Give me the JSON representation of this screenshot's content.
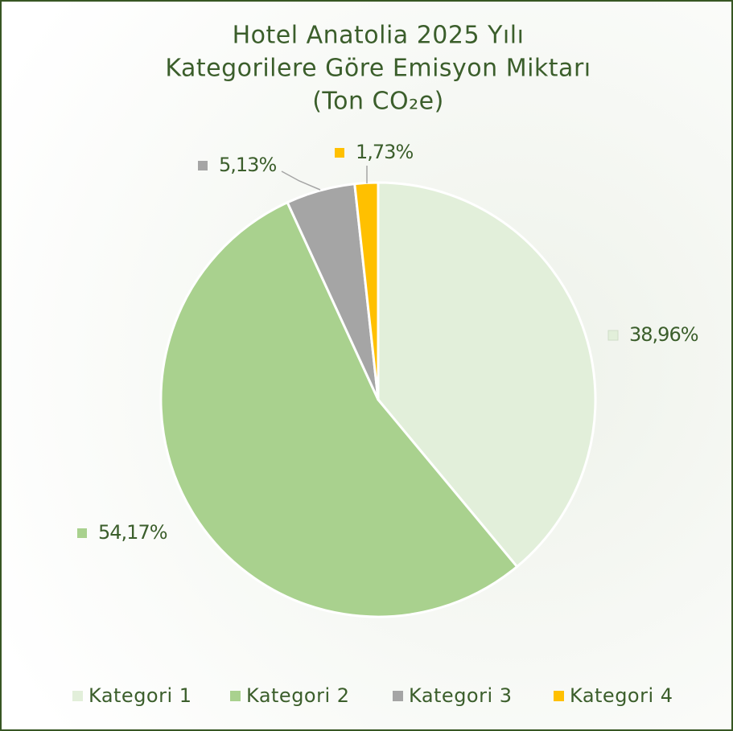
{
  "chart_data": {
    "type": "pie",
    "title": [
      "Hotel Anatolia 2025 Yılı",
      "Kategorilere Göre Emisyon Miktarı",
      "(Ton CO₂e)"
    ],
    "categories": [
      "Kategori 1",
      "Kategori 2",
      "Kategori 3",
      "Kategori 4"
    ],
    "values": [
      38.96,
      54.17,
      5.13,
      1.73
    ],
    "value_labels": [
      "38,96%",
      "54,17%",
      "5,13%",
      "1,73%"
    ],
    "colors": [
      "#e2efda",
      "#a9d18e",
      "#a5a5a5",
      "#ffc000"
    ],
    "legend": "bottom"
  }
}
